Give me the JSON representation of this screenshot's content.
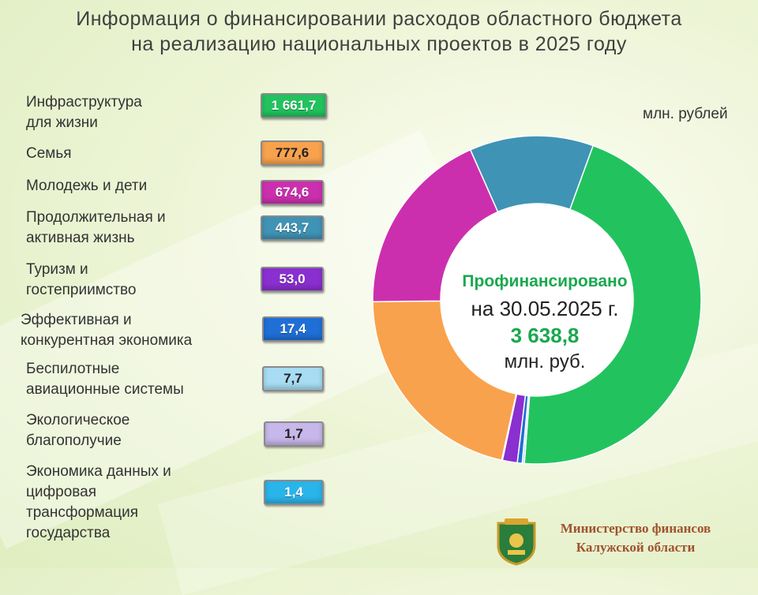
{
  "title_line1": "Информация о финансировании расходов областного бюджета",
  "title_line2": "на реализацию национальных проектов в 2025 году",
  "unit": "млн. рублей",
  "center": {
    "line1": "Профинансировано",
    "line2": "на 30.05.2025  г.",
    "line3": "3 638,8",
    "line4": "млн. руб."
  },
  "footer": {
    "line1": "Министерство финансов",
    "line2": "Калужской области"
  },
  "chart_data": {
    "type": "pie",
    "title": "Информация о финансировании расходов областного бюджета на реализацию национальных проектов в 2025 году",
    "unit": "млн. рублей",
    "total": 3638.8,
    "categories": [
      "Инфраструктура\nдля жизни",
      "Семья",
      "Молодежь и дети",
      "Продолжительная  и\nактивная жизнь",
      "Туризм и\nгостеприимство",
      "Эффективная  и\nконкурентная  экономика",
      "Беспилотные\nавиационные  системы",
      "Экологическое\nблагополучие",
      "Экономика данных и\nцифровая\nтрансформация\nгосударства"
    ],
    "values": [
      1661.7,
      777.6,
      674.6,
      443.7,
      53.0,
      17.4,
      7.7,
      1.7,
      1.4
    ],
    "value_labels": [
      "1 661,7",
      "777,6",
      "674,6",
      "443,7",
      "53,0",
      "17,4",
      "7,7",
      "1,7",
      "1,4"
    ],
    "colors": [
      "#22c35e",
      "#f9a24d",
      "#cc2fae",
      "#3f93b4",
      "#8a2fd0",
      "#1f6fd6",
      "#a7dcf2",
      "#c7b7ea",
      "#29b4ea"
    ],
    "donut_order": [
      0,
      6,
      5,
      4,
      8,
      7,
      1,
      2,
      3
    ]
  }
}
